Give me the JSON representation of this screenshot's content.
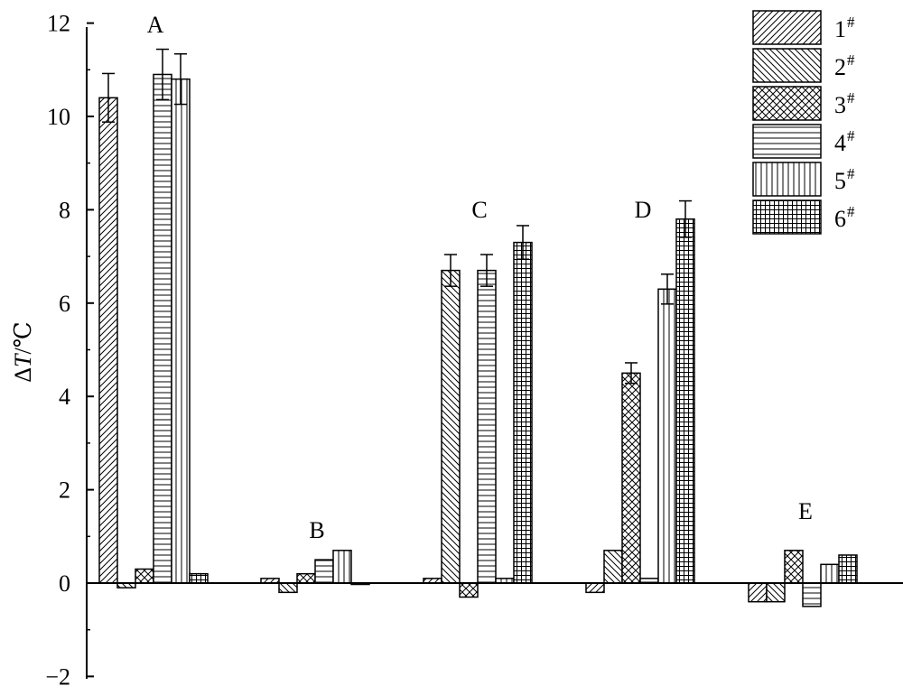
{
  "chart_data": {
    "type": "bar",
    "ylabel_prefix": "Δ",
    "ylabel_var": "T",
    "ylabel_unit": "/℃",
    "ylim": [
      -2,
      12
    ],
    "yticks": [
      -2,
      0,
      2,
      4,
      6,
      8,
      10,
      12
    ],
    "ytick_labels": [
      "−2",
      "0",
      "2",
      "4",
      "6",
      "8",
      "10",
      "12"
    ],
    "grid": false,
    "legend_position": "top-right",
    "categories": [
      "A",
      "B",
      "C",
      "D",
      "E"
    ],
    "series": [
      {
        "name": "1",
        "suffix": "#",
        "pattern": "hatch-forward",
        "values": [
          10.4,
          0.1,
          0.1,
          -0.2,
          -0.4
        ],
        "errors": [
          0.52,
          0,
          0,
          0,
          0
        ]
      },
      {
        "name": "2",
        "suffix": "#",
        "pattern": "hatch-back",
        "values": [
          -0.1,
          -0.2,
          6.7,
          0.7,
          -0.4
        ],
        "errors": [
          0,
          0,
          0.34,
          0,
          0
        ]
      },
      {
        "name": "3",
        "suffix": "#",
        "pattern": "crosshatch",
        "values": [
          0.3,
          0.2,
          -0.3,
          4.5,
          0.7
        ],
        "errors": [
          0,
          0,
          0,
          0.22,
          0
        ]
      },
      {
        "name": "4",
        "suffix": "#",
        "pattern": "horizontal",
        "values": [
          10.9,
          0.5,
          6.7,
          0.1,
          -0.5
        ],
        "errors": [
          0.54,
          0,
          0.34,
          0,
          0
        ]
      },
      {
        "name": "5",
        "suffix": "#",
        "pattern": "vertical",
        "values": [
          10.8,
          0.7,
          0.1,
          6.3,
          0.4
        ],
        "errors": [
          0.54,
          0,
          0,
          0.32,
          0
        ]
      },
      {
        "name": "6",
        "suffix": "#",
        "pattern": "grid",
        "values": [
          0.2,
          0,
          7.3,
          7.8,
          0.6
        ],
        "errors": [
          0,
          0,
          0.36,
          0.39,
          0
        ]
      }
    ]
  }
}
